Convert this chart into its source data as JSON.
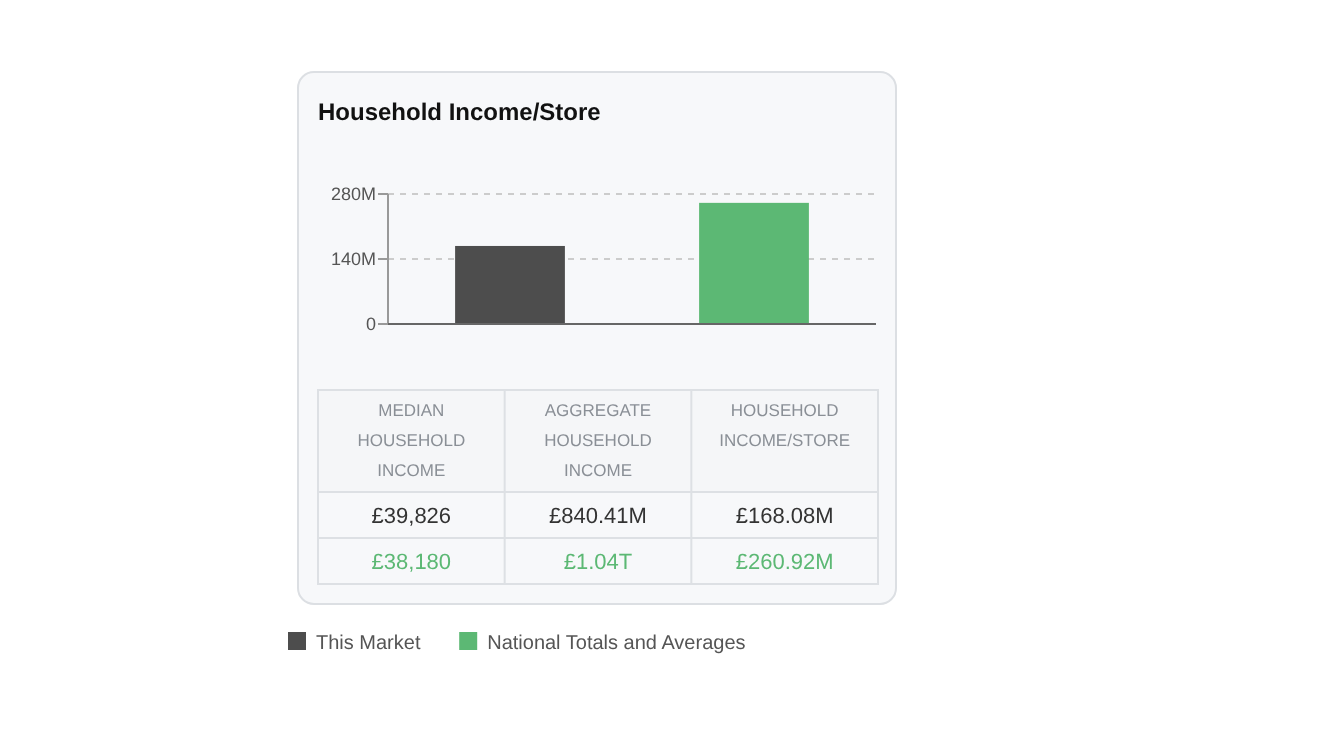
{
  "chart_data": [
    {
      "type": "bar",
      "title": "Household Income/Store",
      "categories": [
        null
      ],
      "series": [
        {
          "name": "This Market",
          "color": "#4d4d4d",
          "values": [
            168.08
          ]
        },
        {
          "name": "National Totals and Averages",
          "color": "#5cb874",
          "values": [
            260.92
          ]
        }
      ],
      "ylim": [
        0,
        280
      ],
      "yticks": [
        0,
        {
          "value": 140,
          "label": "140M"
        },
        {
          "value": 280,
          "label": "280M"
        }
      ],
      "grid": "y",
      "legend": "bottom"
    },
    {
      "type": "other",
      "categories": [
        "MEDIAN HOUSEHOLD INCOME",
        "AGGREGATE HOUSEHOLD INCOME",
        "HOUSEHOLD INCOME/STORE"
      ],
      "series": [
        {
          "color": "#333333",
          "values": [
            39826,
            840410000,
            168080000
          ],
          "value_labels": [
            "£39,826",
            "£840.41M",
            "£168.08M"
          ]
        },
        {
          "color": "#5cb874",
          "values": [
            38180,
            1040000000000,
            260920000
          ],
          "value_labels": [
            "£38,180",
            "£1.04T",
            "£260.92M"
          ]
        }
      ]
    }
  ]
}
